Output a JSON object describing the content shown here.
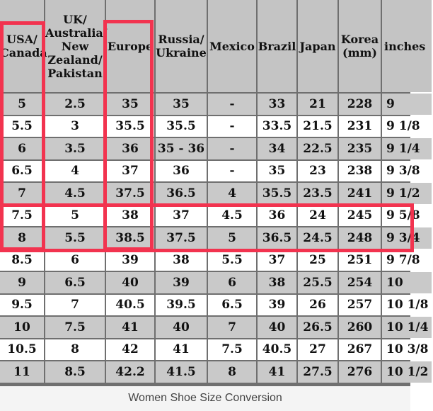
{
  "table": {
    "headers": [
      "USA/ Canada",
      "UK/ Australia/ New Zealand/ Pakistan",
      "Europe",
      "Russia/ Ukraine",
      "Mexico",
      "Brazil",
      "Japan",
      "Korea (mm)",
      "inches"
    ],
    "rows": [
      [
        "5",
        "2.5",
        "35",
        "35",
        "-",
        "33",
        "21",
        "228",
        "9"
      ],
      [
        "5.5",
        "3",
        "35.5",
        "35.5",
        "-",
        "33.5",
        "21.5",
        "231",
        "9 1/8"
      ],
      [
        "6",
        "3.5",
        "36",
        "35 - 36",
        "-",
        "34",
        "22.5",
        "235",
        "9 1/4"
      ],
      [
        "6.5",
        "4",
        "37",
        "36",
        "-",
        "35",
        "23",
        "238",
        "9 3/8"
      ],
      [
        "7",
        "4.5",
        "37.5",
        "36.5",
        "4",
        "35.5",
        "23.5",
        "241",
        "9 1/2"
      ],
      [
        "7.5",
        "5",
        "38",
        "37",
        "4.5",
        "36",
        "24",
        "245",
        "9 5/8"
      ],
      [
        "8",
        "5.5",
        "38.5",
        "37.5",
        "5",
        "36.5",
        "24.5",
        "248",
        "9 3/4"
      ],
      [
        "8.5",
        "6",
        "39",
        "38",
        "5.5",
        "37",
        "25",
        "251",
        "9 7/8"
      ],
      [
        "9",
        "6.5",
        "40",
        "39",
        "6",
        "38",
        "25.5",
        "254",
        "10"
      ],
      [
        "9.5",
        "7",
        "40.5",
        "39.5",
        "6.5",
        "39",
        "26",
        "257",
        "10 1/8"
      ],
      [
        "10",
        "7.5",
        "41",
        "40",
        "7",
        "40",
        "26.5",
        "260",
        "10 1/4"
      ],
      [
        "10.5",
        "8",
        "42",
        "41",
        "7.5",
        "40.5",
        "27",
        "267",
        "10 3/8"
      ],
      [
        "11",
        "8.5",
        "42.2",
        "41.5",
        "8",
        "41",
        "27.5",
        "276",
        "10 1/2"
      ]
    ]
  },
  "caption": "Women Shoe Size Conversion",
  "colors": {
    "highlight": "#f2334f",
    "row_gray": "#c9c9c9",
    "row_white": "#ffffff",
    "header_bg": "#c4c4c4",
    "grid": "#6f6f6f"
  }
}
